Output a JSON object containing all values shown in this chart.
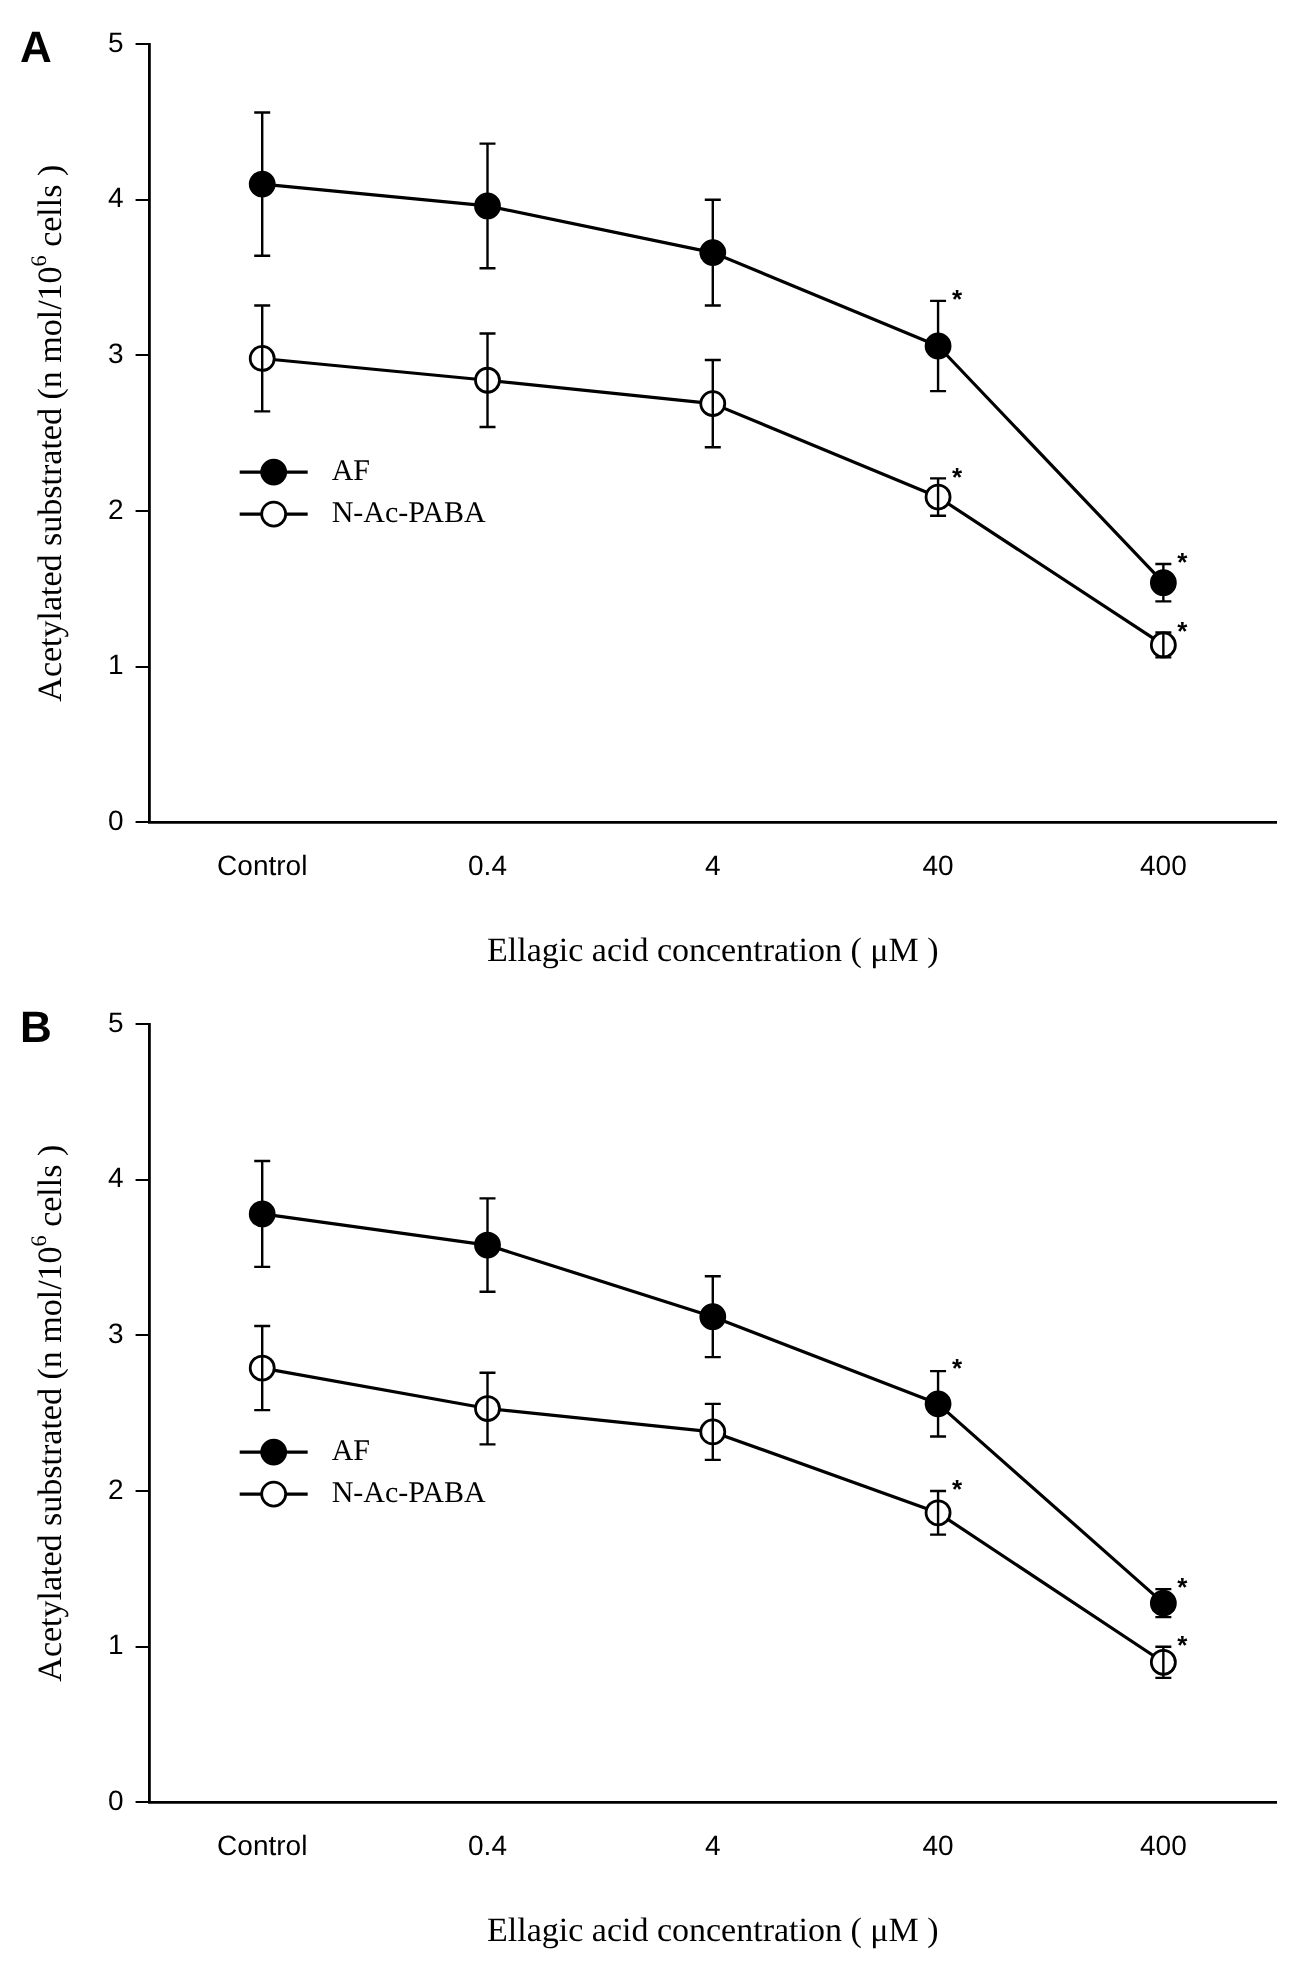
{
  "chart_data": [
    {
      "type": "line",
      "title": "A",
      "xlabel": "Ellagic acid concentration ( μM )",
      "ylabel": "Acetylated substrated (n mol/10$^{6}$ cells )",
      "categories": [
        "Control",
        "0.4",
        "4",
        "40",
        "400"
      ],
      "series": [
        {
          "name": "AF",
          "color": "#000000",
          "values": [
            4.1,
            3.96,
            3.66,
            3.06,
            1.54
          ],
          "errors": [
            0.46,
            0.4,
            0.34,
            0.29,
            0.12
          ]
        },
        {
          "name": "N-Ac-PABA",
          "color": "#000000",
          "values": [
            2.98,
            2.84,
            2.69,
            2.09,
            1.14
          ],
          "errors": [
            0.34,
            0.3,
            0.28,
            0.12,
            0.08
          ]
        }
      ],
      "ylim": [
        0,
        5
      ],
      "yticks": [
        0,
        1,
        2,
        3,
        4,
        5
      ],
      "grid": false,
      "legend": "left",
      "marker": "circle",
      "line_style": "solid",
      "annotations": [
        {
          "text": "*",
          "x": "40",
          "y": 3.35
        },
        {
          "text": "*",
          "x": "40",
          "y": 2.21
        },
        {
          "text": "*",
          "x": "400",
          "y": 1.66
        },
        {
          "text": "*",
          "x": "400",
          "y": 1.22
        }
      ]
    },
    {
      "type": "line",
      "title": "B",
      "xlabel": "Ellagic acid concentration ( μM )",
      "ylabel": "Acetylated substrated (n mol/10$^{6}$ cells )",
      "categories": [
        "Control",
        "0.4",
        "4",
        "40",
        "400"
      ],
      "series": [
        {
          "name": "AF",
          "color": "#000000",
          "values": [
            3.78,
            3.58,
            3.12,
            2.56,
            1.28
          ],
          "errors": [
            0.34,
            0.3,
            0.26,
            0.21,
            0.09
          ]
        },
        {
          "name": "N-Ac-PABA",
          "color": "#000000",
          "values": [
            2.79,
            2.53,
            2.38,
            1.86,
            0.9
          ],
          "errors": [
            0.27,
            0.23,
            0.18,
            0.14,
            0.1
          ]
        }
      ],
      "ylim": [
        0,
        5
      ],
      "yticks": [
        0,
        1,
        2,
        3,
        4,
        5
      ],
      "grid": false,
      "legend": "left",
      "marker": "circle",
      "line_style": "solid",
      "annotations": [
        {
          "text": "*",
          "x": "40",
          "y": 2.78
        },
        {
          "text": "*",
          "x": "40",
          "y": 2.0
        },
        {
          "text": "*",
          "x": "400",
          "y": 1.37
        },
        {
          "text": "*",
          "x": "400",
          "y": 1.0
        }
      ]
    }
  ]
}
